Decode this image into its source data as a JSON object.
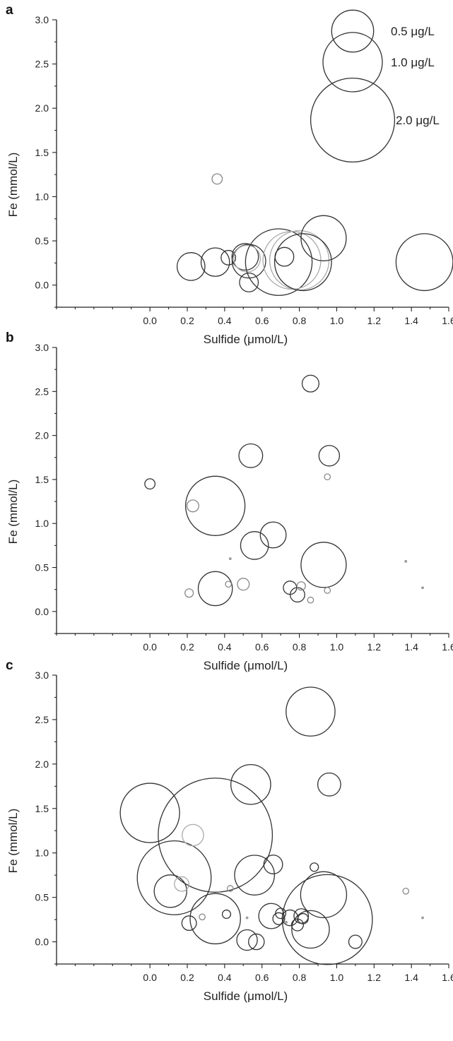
{
  "chart_data": [
    {
      "type": "scatter",
      "panel": "a",
      "xlabel": "Sulfide (μmol/L)",
      "ylabel": "Fe (mmol/L)",
      "xlim": [
        -0.5,
        1.6
      ],
      "ylim": [
        -0.25,
        3.0
      ],
      "xticks": [
        "0.0",
        "0.2",
        "0.4",
        "0.6",
        "0.8",
        "1.0",
        "1.2",
        "1.4",
        "1.6"
      ],
      "yticks": [
        "0.0",
        "0.5",
        "1.0",
        "1.5",
        "2.0",
        "2.5",
        "3.0"
      ],
      "size_units": "μg/L",
      "legend": [
        {
          "label": "0.5 μg/L",
          "value": 0.5
        },
        {
          "label": "1.0 μg/L",
          "value": 1.0
        },
        {
          "label": "2.0 μg/L",
          "value": 2.0
        }
      ],
      "points": [
        {
          "x": 0.36,
          "y": 1.2,
          "size": 0.03,
          "color": "#888888"
        },
        {
          "x": 0.22,
          "y": 0.21,
          "size": 0.22,
          "color": "#333333"
        },
        {
          "x": 0.35,
          "y": 0.26,
          "size": 0.23,
          "color": "#333333"
        },
        {
          "x": 0.42,
          "y": 0.31,
          "size": 0.06,
          "color": "#333333"
        },
        {
          "x": 0.51,
          "y": 0.32,
          "size": 0.2,
          "color": "#333333"
        },
        {
          "x": 0.53,
          "y": 0.27,
          "size": 0.32,
          "color": "#333333"
        },
        {
          "x": 0.52,
          "y": 0.3,
          "size": 0.2,
          "color": "#aaaaaa"
        },
        {
          "x": 0.53,
          "y": 0.03,
          "size": 0.1,
          "color": "#333333"
        },
        {
          "x": 0.69,
          "y": 0.26,
          "size": 1.26,
          "color": "#333333"
        },
        {
          "x": 0.72,
          "y": 0.32,
          "size": 0.1,
          "color": "#333333"
        },
        {
          "x": 0.76,
          "y": 0.28,
          "size": 0.95,
          "color": "#aaaaaa"
        },
        {
          "x": 0.8,
          "y": 0.28,
          "size": 1.0,
          "color": "#aaaaaa"
        },
        {
          "x": 0.82,
          "y": 0.26,
          "size": 0.92,
          "color": "#333333"
        },
        {
          "x": 0.93,
          "y": 0.53,
          "size": 0.58,
          "color": "#333333"
        },
        {
          "x": 1.47,
          "y": 0.26,
          "size": 0.92,
          "color": "#333333"
        }
      ]
    },
    {
      "type": "scatter",
      "panel": "b",
      "xlabel": "Sulfide (μmol/L)",
      "ylabel": "Fe (mmol/L)",
      "xlim": [
        -0.5,
        1.6
      ],
      "ylim": [
        -0.25,
        3.0
      ],
      "xticks": [
        "0.0",
        "0.2",
        "0.4",
        "0.6",
        "0.8",
        "1.0",
        "1.2",
        "1.4",
        "1.6"
      ],
      "yticks": [
        "0.0",
        "0.5",
        "1.0",
        "1.5",
        "2.0",
        "2.5",
        "3.0"
      ],
      "points": [
        {
          "x": 0.0,
          "y": 1.45,
          "size": 0.03,
          "color": "#333333"
        },
        {
          "x": 0.23,
          "y": 1.2,
          "size": 0.04,
          "color": "#888888"
        },
        {
          "x": 0.35,
          "y": 1.2,
          "size": 1.0,
          "color": "#333333"
        },
        {
          "x": 0.54,
          "y": 1.77,
          "size": 0.16,
          "color": "#333333"
        },
        {
          "x": 0.56,
          "y": 0.75,
          "size": 0.22,
          "color": "#333333"
        },
        {
          "x": 0.66,
          "y": 0.87,
          "size": 0.19,
          "color": "#333333"
        },
        {
          "x": 0.86,
          "y": 2.59,
          "size": 0.08,
          "color": "#333333"
        },
        {
          "x": 0.96,
          "y": 1.77,
          "size": 0.12,
          "color": "#333333"
        },
        {
          "x": 0.95,
          "y": 1.53,
          "size": 0.01,
          "color": "#888888"
        },
        {
          "x": 0.93,
          "y": 0.53,
          "size": 0.58,
          "color": "#333333"
        },
        {
          "x": 0.35,
          "y": 0.26,
          "size": 0.33,
          "color": "#333333"
        },
        {
          "x": 0.21,
          "y": 0.21,
          "size": 0.02,
          "color": "#888888"
        },
        {
          "x": 0.42,
          "y": 0.31,
          "size": 0.01,
          "color": "#888888"
        },
        {
          "x": 0.43,
          "y": 0.6,
          "size": 0.0,
          "color": "#888888"
        },
        {
          "x": 0.5,
          "y": 0.31,
          "size": 0.04,
          "color": "#888888"
        },
        {
          "x": 0.75,
          "y": 0.27,
          "size": 0.05,
          "color": "#333333"
        },
        {
          "x": 0.79,
          "y": 0.19,
          "size": 0.06,
          "color": "#333333"
        },
        {
          "x": 0.81,
          "y": 0.29,
          "size": 0.02,
          "color": "#888888"
        },
        {
          "x": 0.86,
          "y": 0.13,
          "size": 0.01,
          "color": "#888888"
        },
        {
          "x": 0.95,
          "y": 0.24,
          "size": 0.01,
          "color": "#888888"
        },
        {
          "x": 1.37,
          "y": 0.57,
          "size": 0.0,
          "color": "#888888"
        },
        {
          "x": 1.46,
          "y": 0.27,
          "size": 0.0,
          "color": "#888888"
        }
      ]
    },
    {
      "type": "scatter",
      "panel": "c",
      "xlabel": "Sulfide (μmol/L)",
      "ylabel": "Fe (mmol/L)",
      "xlim": [
        -0.5,
        1.6
      ],
      "ylim": [
        -0.25,
        3.0
      ],
      "xticks": [
        "0.0",
        "0.2",
        "0.4",
        "0.6",
        "0.8",
        "1.0",
        "1.2",
        "1.4",
        "1.6"
      ],
      "yticks": [
        "0.0",
        "0.5",
        "1.0",
        "1.5",
        "2.0",
        "2.5",
        "3.0"
      ],
      "points": [
        {
          "x": 0.0,
          "y": 1.45,
          "size": 1.0,
          "color": "#333333"
        },
        {
          "x": 0.35,
          "y": 1.2,
          "size": 3.7,
          "color": "#333333"
        },
        {
          "x": 0.13,
          "y": 0.72,
          "size": 1.55,
          "color": "#333333"
        },
        {
          "x": 0.11,
          "y": 0.57,
          "size": 0.3,
          "color": "#333333"
        },
        {
          "x": 0.17,
          "y": 0.65,
          "size": 0.06,
          "color": "#aaaaaa"
        },
        {
          "x": 0.23,
          "y": 1.2,
          "size": 0.13,
          "color": "#aaaaaa"
        },
        {
          "x": 0.21,
          "y": 0.21,
          "size": 0.06,
          "color": "#333333"
        },
        {
          "x": 0.28,
          "y": 0.28,
          "size": 0.01,
          "color": "#888888"
        },
        {
          "x": 0.35,
          "y": 0.26,
          "size": 0.72,
          "color": "#333333"
        },
        {
          "x": 0.41,
          "y": 0.31,
          "size": 0.02,
          "color": "#333333"
        },
        {
          "x": 0.43,
          "y": 0.6,
          "size": 0.01,
          "color": "#888888"
        },
        {
          "x": 0.52,
          "y": 0.27,
          "size": 0.0,
          "color": "#888888"
        },
        {
          "x": 0.52,
          "y": 0.02,
          "size": 0.12,
          "color": "#333333"
        },
        {
          "x": 0.57,
          "y": 0.0,
          "size": 0.07,
          "color": "#333333"
        },
        {
          "x": 0.54,
          "y": 1.77,
          "size": 0.45,
          "color": "#333333"
        },
        {
          "x": 0.56,
          "y": 0.75,
          "size": 0.45,
          "color": "#333333"
        },
        {
          "x": 0.66,
          "y": 0.87,
          "size": 0.1,
          "color": "#333333"
        },
        {
          "x": 0.65,
          "y": 0.29,
          "size": 0.18,
          "color": "#333333"
        },
        {
          "x": 0.69,
          "y": 0.26,
          "size": 0.04,
          "color": "#333333"
        },
        {
          "x": 0.7,
          "y": 0.32,
          "size": 0.03,
          "color": "#333333"
        },
        {
          "x": 0.73,
          "y": 0.22,
          "size": 0.0,
          "color": "#888888"
        },
        {
          "x": 0.75,
          "y": 0.27,
          "size": 0.07,
          "color": "#333333"
        },
        {
          "x": 0.79,
          "y": 0.19,
          "size": 0.04,
          "color": "#333333"
        },
        {
          "x": 0.81,
          "y": 0.29,
          "size": 0.06,
          "color": "#333333"
        },
        {
          "x": 0.82,
          "y": 0.26,
          "size": 0.03,
          "color": "#333333"
        },
        {
          "x": 0.86,
          "y": 2.59,
          "size": 0.68,
          "color": "#333333"
        },
        {
          "x": 0.96,
          "y": 1.77,
          "size": 0.15,
          "color": "#333333"
        },
        {
          "x": 0.88,
          "y": 0.84,
          "size": 0.02,
          "color": "#333333"
        },
        {
          "x": 0.93,
          "y": 0.53,
          "size": 0.6,
          "color": "#333333"
        },
        {
          "x": 0.95,
          "y": 0.25,
          "size": 2.3,
          "color": "#333333"
        },
        {
          "x": 0.86,
          "y": 0.14,
          "size": 0.4,
          "color": "#333333"
        },
        {
          "x": 1.1,
          "y": 0.0,
          "size": 0.05,
          "color": "#333333"
        },
        {
          "x": 1.37,
          "y": 0.57,
          "size": 0.01,
          "color": "#888888"
        },
        {
          "x": 1.46,
          "y": 0.27,
          "size": 0.0,
          "color": "#888888"
        }
      ]
    }
  ]
}
